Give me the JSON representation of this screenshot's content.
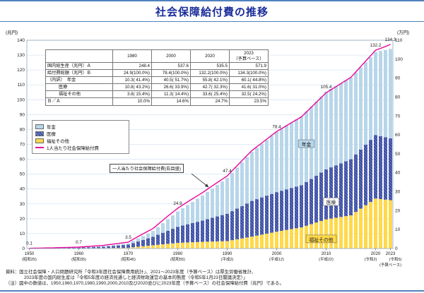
{
  "page": {
    "title": "社会保障給付費の推移",
    "accent_color": "#1b2d9b",
    "rule_color": "#4f81bd"
  },
  "table": {
    "columns": [
      {
        "label": "1980"
      },
      {
        "label": "2000"
      },
      {
        "label": "2020"
      },
      {
        "label": "2023",
        "sub": "（予算ベース）"
      }
    ],
    "rows": [
      {
        "label": "国内総生産（兆円）Ａ",
        "indent": false,
        "cells": [
          "248.4",
          "537.6",
          "535.5",
          "571.9"
        ]
      },
      {
        "label": "給付費総額（兆円）Ｂ",
        "indent": false,
        "cells": [
          "24.9(100.0%)",
          "78.4(100.0%)",
          "132.2(100.0%)",
          "134.3(100.0%)"
        ]
      },
      {
        "label": "（内訳）　年金",
        "indent": false,
        "cells": [
          "10.3( 41.4%)",
          "40.5( 51.7%)",
          "55.8( 42.1%)",
          "60.1( 44.8%)"
        ]
      },
      {
        "label": "医療",
        "indent": true,
        "cells": [
          "10.8( 43.2%)",
          "26.6( 33.9%)",
          "42.7( 32.3%)",
          "41.6( 31.0%)"
        ]
      },
      {
        "label": "福祉その他",
        "indent": true,
        "cells": [
          "3.8( 15.4%)",
          "11.3( 14.4%)",
          "33.6( 25.4%)",
          "32.5( 24.2%)"
        ]
      },
      {
        "label": "Ｂ／Ａ",
        "indent": false,
        "cells": [
          "10.0%",
          "14.6%",
          "24.7%",
          "23.5%"
        ]
      }
    ]
  },
  "legend": {
    "items": [
      {
        "type": "box",
        "icon": "pension-swatch",
        "label": "年金",
        "color": "#b8d6ea"
      },
      {
        "type": "box",
        "icon": "medical-swatch",
        "label": "医療",
        "color": "#3e4fa3",
        "hatch": true,
        "hatch_color": "#8fa0dd"
      },
      {
        "type": "box",
        "icon": "welfare-swatch",
        "label": "福祉その他",
        "color": "#ffd94a"
      },
      {
        "type": "line",
        "icon": "line-swatch",
        "label": "1人当たり社会保障給付費",
        "color": "#e6089b"
      }
    ]
  },
  "annotation": {
    "text": "一人当たり社会保障給付費(右目盛)"
  },
  "notes": [
    "資料：国立社会保障・人口問題研究所「令和3年度社会保障費用統計」、2021～2023年度（予算ベース）は厚生労働省推計、",
    "2023年度の国内総生産は「令和5年度の経済見通しと経済財政運営の基本的態度（令和5年1月23日閣議決定）」",
    "（注）図中の数値は、1950,1960,1970,1980,1990,2000,2010及び2020並びに2023年度（予算ベース）の社会保障給付費（兆円）である。"
  ],
  "chart_data": {
    "type": "bar",
    "subtype": "stacked-bar-with-line",
    "title": "社会保障給付費の推移",
    "grid_color": "#c5d7e8",
    "left_axis": {
      "label": "(兆円)",
      "min": 0,
      "max": 140,
      "step": 10
    },
    "right_axis": {
      "label": "(万円)",
      "min": 0,
      "max": 110,
      "step": 10
    },
    "x": [
      1950,
      1951,
      1952,
      1953,
      1954,
      1955,
      1956,
      1957,
      1958,
      1959,
      1960,
      1961,
      1962,
      1963,
      1964,
      1965,
      1966,
      1967,
      1968,
      1969,
      1970,
      1971,
      1972,
      1973,
      1974,
      1975,
      1976,
      1977,
      1978,
      1979,
      1980,
      1981,
      1982,
      1983,
      1984,
      1985,
      1986,
      1987,
      1988,
      1989,
      1990,
      1991,
      1992,
      1993,
      1994,
      1995,
      1996,
      1997,
      1998,
      1999,
      2000,
      2001,
      2002,
      2003,
      2004,
      2005,
      2006,
      2007,
      2008,
      2009,
      2010,
      2011,
      2012,
      2013,
      2014,
      2015,
      2016,
      2017,
      2018,
      2019,
      2020,
      2021,
      2022,
      2023
    ],
    "series": [
      {
        "key": "welfare",
        "name": "福祉その他",
        "color": "#ffd94a",
        "values": [
          0.05,
          0.06,
          0.07,
          0.08,
          0.09,
          0.1,
          0.12,
          0.14,
          0.16,
          0.18,
          0.2,
          0.23,
          0.26,
          0.29,
          0.32,
          0.35,
          0.38,
          0.41,
          0.44,
          0.47,
          0.5,
          0.84,
          1.18,
          1.52,
          1.86,
          2.2,
          2.52,
          2.84,
          3.16,
          3.48,
          3.8,
          3.94,
          4.08,
          4.22,
          4.36,
          4.5,
          4.6,
          4.7,
          4.8,
          4.9,
          5.0,
          5.6,
          6.2,
          6.8,
          7.4,
          8.0,
          8.66,
          9.32,
          9.98,
          10.64,
          11.3,
          11.88,
          12.46,
          13.04,
          13.62,
          14.2,
          15.28,
          16.36,
          17.44,
          18.52,
          19.6,
          20.14,
          20.68,
          21.22,
          21.76,
          22.3,
          24.56,
          26.82,
          29.08,
          31.34,
          33.6,
          33.23,
          32.87,
          32.5
        ]
      },
      {
        "key": "medical",
        "name": "医療",
        "color": "#3e4fa3",
        "hatch": true,
        "hatch_color": "#8fa0dd",
        "values": [
          0.05,
          0.08,
          0.11,
          0.14,
          0.17,
          0.2,
          0.24,
          0.28,
          0.32,
          0.36,
          0.4,
          0.5,
          0.6,
          0.7,
          0.8,
          0.9,
          1.14,
          1.38,
          1.62,
          1.86,
          2.1,
          2.82,
          3.54,
          4.26,
          4.98,
          5.7,
          6.72,
          7.74,
          8.76,
          9.78,
          10.8,
          11.5,
          12.2,
          12.9,
          13.6,
          14.3,
          15.12,
          15.94,
          16.76,
          17.58,
          18.4,
          19.52,
          20.64,
          21.76,
          22.88,
          24.0,
          24.52,
          25.04,
          25.56,
          26.08,
          26.6,
          26.96,
          27.32,
          27.68,
          28.04,
          28.4,
          29.44,
          30.48,
          31.52,
          32.56,
          33.6,
          34.42,
          35.24,
          36.06,
          36.88,
          37.7,
          38.7,
          39.7,
          40.7,
          41.7,
          42.7,
          42.33,
          41.97,
          41.6
        ]
      },
      {
        "key": "pension",
        "name": "年金",
        "color": "#b8d6ea",
        "values": [
          0.0,
          0.01,
          0.02,
          0.03,
          0.04,
          0.05,
          0.06,
          0.07,
          0.08,
          0.09,
          0.1,
          0.15,
          0.2,
          0.25,
          0.3,
          0.35,
          0.46,
          0.57,
          0.68,
          0.79,
          0.9,
          1.5,
          2.1,
          2.7,
          3.3,
          3.9,
          5.18,
          6.46,
          7.74,
          9.02,
          10.3,
          11.62,
          12.94,
          14.26,
          15.58,
          16.9,
          18.32,
          19.74,
          21.16,
          22.58,
          24.0,
          25.8,
          27.6,
          29.4,
          31.2,
          33.0,
          34.5,
          36.0,
          37.5,
          39.0,
          40.5,
          41.66,
          42.82,
          43.98,
          45.14,
          46.3,
          47.48,
          48.66,
          49.84,
          51.02,
          52.2,
          52.74,
          53.28,
          53.82,
          54.36,
          54.9,
          55.08,
          55.26,
          55.44,
          55.62,
          55.8,
          57.23,
          58.67,
          60.1
        ]
      }
    ],
    "line": {
      "name": "1人当たり社会保障給付費",
      "axis": "right",
      "color": "#e6089b",
      "values": [
        0.12,
        0.18,
        0.23,
        0.29,
        0.34,
        0.39,
        0.47,
        0.54,
        0.61,
        0.68,
        0.75,
        0.94,
        1.12,
        1.29,
        1.46,
        1.63,
        2.0,
        2.35,
        2.7,
        3.04,
        3.37,
        4.89,
        6.36,
        7.79,
        9.19,
        10.54,
        12.76,
        14.95,
        17.1,
        19.21,
        21.28,
        22.97,
        24.64,
        26.28,
        27.9,
        29.5,
        31.31,
        33.1,
        34.87,
        36.63,
        38.35,
        41.06,
        43.76,
        46.44,
        49.1,
        51.75,
        53.76,
        55.75,
        57.78,
        59.76,
        61.78,
        63.34,
        64.89,
        66.48,
        68.03,
        69.56,
        72.09,
        74.61,
        77.19,
        79.7,
        82.28,
        83.89,
        85.51,
        87.14,
        88.77,
        90.4,
        93.25,
        96.12,
        98.99,
        101.87,
        104.76,
        105.73,
        106.72,
        107.79
      ]
    },
    "x_ticks": [
      {
        "year": 1950,
        "era": "(昭和25)"
      },
      {
        "year": 1960,
        "era": "(昭和35)"
      },
      {
        "year": 1970,
        "era": "(昭和45)"
      },
      {
        "year": 1980,
        "era": "(昭和55)"
      },
      {
        "year": 1990,
        "era": "(平成2)"
      },
      {
        "year": 2000,
        "era": "(平成12)"
      },
      {
        "year": 2010,
        "era": "(平成22)"
      },
      {
        "year": 2020,
        "era": "(令和2)",
        "era_dx": -7
      },
      {
        "year": 2023,
        "era": "(令和5)",
        "era_dx": 7,
        "extra": "(予算ベース)"
      }
    ],
    "point_labels": [
      {
        "year": 1950,
        "text": "0.1"
      },
      {
        "year": 1960,
        "text": "0.7"
      },
      {
        "year": 1970,
        "text": "3.5"
      },
      {
        "year": 1980,
        "text": "24.9"
      },
      {
        "year": 1990,
        "text": "47.4"
      },
      {
        "year": 2000,
        "text": "78.4"
      },
      {
        "year": 2010,
        "text": "105.4"
      },
      {
        "year": 2020,
        "text": "132.2"
      },
      {
        "year": 2023,
        "text": "134.3"
      }
    ],
    "band_labels": [
      {
        "text": "年金",
        "year": 2006,
        "left_value": 70,
        "bg": "#b8d6ea"
      },
      {
        "text": "医療",
        "year": 2011,
        "left_value": 31,
        "bg": "#ffffff"
      },
      {
        "text": "福祉その他",
        "year": 2009,
        "left_value": 6,
        "bg": "#ffd94a"
      }
    ]
  }
}
